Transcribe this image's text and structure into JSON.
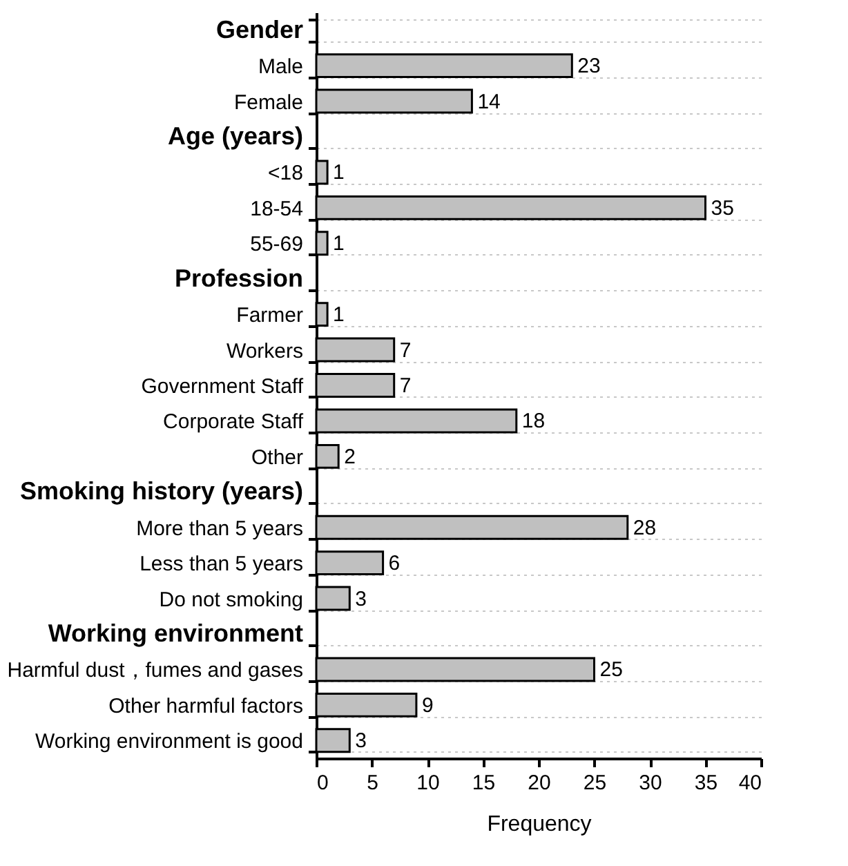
{
  "chart_data": {
    "type": "bar",
    "orientation": "horizontal",
    "xlabel": "Frequency",
    "categories": [
      "Gender",
      "Male",
      "Female",
      "Age (years)",
      "<18",
      "18-54",
      "55-69",
      "Profession",
      "Farmer",
      "Workers",
      "Government Staff",
      "Corporate Staff",
      "Other",
      "Smoking history (years)",
      "More than 5 years",
      "Less than 5 years",
      "Do not smoking",
      "Working environment",
      "Harmful dust，fumes and gases",
      "Other harmful factors",
      "Working environment is good"
    ],
    "values": [
      null,
      23,
      14,
      null,
      1,
      35,
      1,
      null,
      1,
      7,
      7,
      18,
      2,
      null,
      28,
      6,
      3,
      null,
      25,
      9,
      3
    ],
    "color": "#c0c0c0",
    "xlim": [
      0,
      40
    ],
    "xticks": [
      0,
      5,
      10,
      15,
      20,
      25,
      30,
      35,
      40
    ],
    "grid": "y",
    "data_labels": true
  }
}
